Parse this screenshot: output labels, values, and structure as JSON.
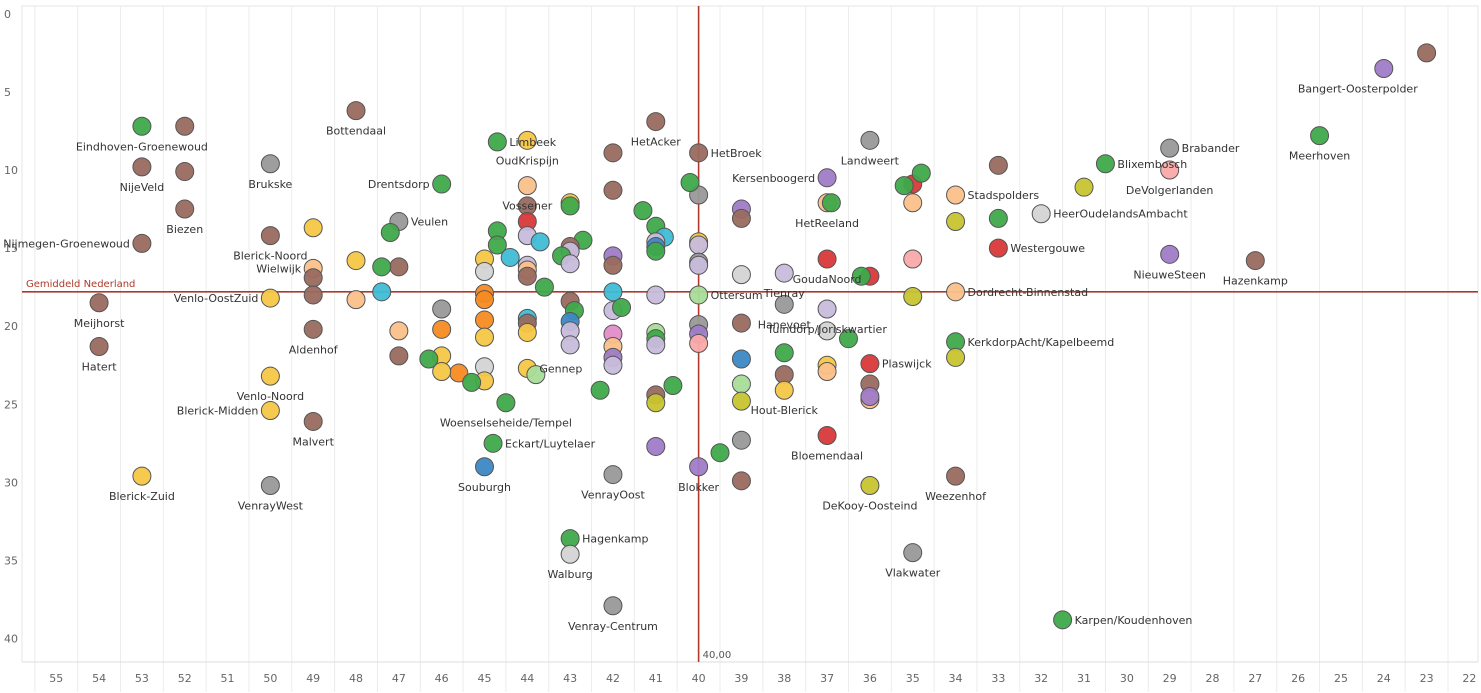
{
  "chart_data": {
    "type": "scatter",
    "x_axis": {
      "reversed": true,
      "range": [
        55.8,
        21.8
      ],
      "ticks": [
        55,
        54,
        53,
        52,
        51,
        50,
        49,
        48,
        47,
        46,
        45,
        44,
        43,
        42,
        41,
        40,
        39,
        38,
        37,
        36,
        35,
        34,
        33,
        32,
        31,
        30,
        29,
        28,
        27,
        26,
        25,
        24,
        23,
        22
      ]
    },
    "y_axis": {
      "reversed": true,
      "range": [
        -0.5,
        41.5
      ],
      "ticks": [
        0,
        5,
        10,
        15,
        20,
        25,
        30,
        35,
        40
      ]
    },
    "grid": "vertical",
    "reference_lines": {
      "horizontal": {
        "y": 17.8,
        "label": "Gemiddeld Nederland"
      },
      "vertical": {
        "x": 40,
        "label": "40,00"
      }
    },
    "colors": {
      "green": "#3fa94a",
      "brown": "#9a6a5f",
      "gray": "#999999",
      "lightgray": "#d4d4d4",
      "yellow": "#f5c744",
      "olive": "#c8c430",
      "purple": "#a07cc8",
      "lavender": "#c8bcdc",
      "peach": "#fbc08a",
      "pink": "#f9a9a9",
      "red": "#d8383a",
      "blue": "#3c88c4",
      "cyan": "#3fbcd6",
      "orange": "#f58b22",
      "magenta": "#e38cc8",
      "lightgreen": "#a8dd98"
    },
    "points": [
      {
        "x": 23,
        "y": 2.5,
        "c": "brown"
      },
      {
        "x": 24,
        "y": 3.5,
        "c": "purple"
      },
      {
        "x": 25.5,
        "y": 7.8,
        "c": "green",
        "label": "Meerhoven"
      },
      {
        "x": 29,
        "y": 8.6,
        "c": "gray",
        "label": "Brabander"
      },
      {
        "x": 29,
        "y": 10,
        "c": "pink",
        "label": "DeVolgerlanden"
      },
      {
        "x": 30.5,
        "y": 9.6,
        "c": "green",
        "label": "Blixembosch"
      },
      {
        "x": 31,
        "y": 11.1,
        "c": "olive"
      },
      {
        "x": 32,
        "y": 12.8,
        "c": "lightgray",
        "label": "HeerOudelandsAmbacht"
      },
      {
        "x": 29,
        "y": 15.4,
        "c": "purple",
        "label": "NieuweSteen"
      },
      {
        "x": 27,
        "y": 15.8,
        "c": "brown",
        "label": "Hazenkamp"
      },
      {
        "x": 31.5,
        "y": 38.8,
        "c": "green",
        "label": "Karpen/Koudenhoven"
      },
      {
        "x": 33,
        "y": 9.7,
        "c": "brown"
      },
      {
        "x": 33,
        "y": 13.1,
        "c": "green"
      },
      {
        "x": 33,
        "y": 15,
        "c": "red",
        "label": "Westergouwe"
      },
      {
        "x": 34,
        "y": 11.6,
        "c": "peach",
        "label": "Stadspolders"
      },
      {
        "x": 34,
        "y": 13.3,
        "c": "olive"
      },
      {
        "x": 34,
        "y": 17.8,
        "c": "peach",
        "label": "Dordrecht-Binnenstad"
      },
      {
        "x": 34,
        "y": 21,
        "c": "green",
        "label": "KerkdorpAcht/Kapelbeemd"
      },
      {
        "x": 34,
        "y": 22,
        "c": "olive"
      },
      {
        "x": 34,
        "y": 29.6,
        "c": "brown",
        "label": "Weezenhof"
      },
      {
        "x": 35,
        "y": 10.9,
        "c": "red"
      },
      {
        "x": 35,
        "y": 12.1,
        "c": "peach"
      },
      {
        "x": 35,
        "y": 15.7,
        "c": "pink"
      },
      {
        "x": 35,
        "y": 18.1,
        "c": "olive"
      },
      {
        "x": 35,
        "y": 34.5,
        "c": "gray",
        "label": "Vlakwater"
      },
      {
        "x": 34.8,
        "y": 10.2,
        "c": "green"
      },
      {
        "x": 35.2,
        "y": 11,
        "c": "green"
      },
      {
        "x": 36,
        "y": 8.1,
        "c": "gray",
        "label": "Landweert"
      },
      {
        "x": 36,
        "y": 16.8,
        "c": "red"
      },
      {
        "x": 36.2,
        "y": 16.8,
        "c": "green"
      },
      {
        "x": 36,
        "y": 22.4,
        "c": "red",
        "label": "Plaswijck"
      },
      {
        "x": 36,
        "y": 23.7,
        "c": "brown"
      },
      {
        "x": 36,
        "y": 24.7,
        "c": "peach"
      },
      {
        "x": 36,
        "y": 24.5,
        "c": "purple"
      },
      {
        "x": 36,
        "y": 30.2,
        "c": "olive",
        "label": "DeKooy-Oosteind"
      },
      {
        "x": 37,
        "y": 10.5,
        "c": "purple",
        "label": "Kersenboogerd"
      },
      {
        "x": 37,
        "y": 12.1,
        "c": "peach",
        "label": "HetReeland"
      },
      {
        "x": 36.9,
        "y": 12.1,
        "c": "green"
      },
      {
        "x": 37,
        "y": 15.7,
        "c": "red",
        "label": "GoudaNoord"
      },
      {
        "x": 37,
        "y": 18.9,
        "c": "lavender",
        "label": "Tuindorp/Joriskwartier"
      },
      {
        "x": 37,
        "y": 20.3,
        "c": "lightgray"
      },
      {
        "x": 37,
        "y": 22.5,
        "c": "yellow"
      },
      {
        "x": 37,
        "y": 22.9,
        "c": "peach"
      },
      {
        "x": 37,
        "y": 27,
        "c": "red",
        "label": "Bloemendaal"
      },
      {
        "x": 36.5,
        "y": 20.8,
        "c": "green"
      },
      {
        "x": 38,
        "y": 16.6,
        "c": "lavender",
        "label": "Tienray"
      },
      {
        "x": 38,
        "y": 18.6,
        "c": "gray",
        "label": "Hanevoet"
      },
      {
        "x": 38,
        "y": 21.7,
        "c": "green"
      },
      {
        "x": 38,
        "y": 23.1,
        "c": "brown"
      },
      {
        "x": 38,
        "y": 24.1,
        "c": "yellow",
        "label": "Hout-Blerick"
      },
      {
        "x": 39,
        "y": 12.5,
        "c": "purple"
      },
      {
        "x": 39,
        "y": 13.1,
        "c": "brown"
      },
      {
        "x": 39,
        "y": 16.7,
        "c": "lightgray"
      },
      {
        "x": 39,
        "y": 19.8,
        "c": "brown"
      },
      {
        "x": 39,
        "y": 22.1,
        "c": "blue"
      },
      {
        "x": 39,
        "y": 23.7,
        "c": "lightgreen"
      },
      {
        "x": 39,
        "y": 24.8,
        "c": "olive"
      },
      {
        "x": 39,
        "y": 27.3,
        "c": "gray"
      },
      {
        "x": 39,
        "y": 29.9,
        "c": "brown"
      },
      {
        "x": 40,
        "y": 8.9,
        "c": "brown",
        "label": "HetBroek"
      },
      {
        "x": 40,
        "y": 11.6,
        "c": "gray"
      },
      {
        "x": 40.2,
        "y": 10.8,
        "c": "green"
      },
      {
        "x": 40,
        "y": 14.6,
        "c": "yellow"
      },
      {
        "x": 40,
        "y": 14.8,
        "c": "lavender"
      },
      {
        "x": 40,
        "y": 15.9,
        "c": "gray"
      },
      {
        "x": 40,
        "y": 16.1,
        "c": "lavender"
      },
      {
        "x": 40,
        "y": 18,
        "c": "lightgreen",
        "label": "Ottersum"
      },
      {
        "x": 40,
        "y": 19.9,
        "c": "gray"
      },
      {
        "x": 40,
        "y": 20.5,
        "c": "purple"
      },
      {
        "x": 40,
        "y": 21.1,
        "c": "pink"
      },
      {
        "x": 40,
        "y": 29,
        "c": "purple",
        "label": "Blokker"
      },
      {
        "x": 39.5,
        "y": 28.1,
        "c": "green"
      },
      {
        "x": 41,
        "y": 6.9,
        "c": "brown",
        "label": "HetAcker"
      },
      {
        "x": 41.3,
        "y": 12.6,
        "c": "green"
      },
      {
        "x": 41,
        "y": 13.6,
        "c": "green"
      },
      {
        "x": 40.8,
        "y": 14.3,
        "c": "cyan"
      },
      {
        "x": 41,
        "y": 14.6,
        "c": "lavender"
      },
      {
        "x": 41,
        "y": 14.9,
        "c": "blue"
      },
      {
        "x": 41,
        "y": 15.2,
        "c": "green"
      },
      {
        "x": 41,
        "y": 18,
        "c": "lavender"
      },
      {
        "x": 41,
        "y": 20.4,
        "c": "lightgreen"
      },
      {
        "x": 41,
        "y": 20.8,
        "c": "green"
      },
      {
        "x": 41,
        "y": 21.2,
        "c": "lavender"
      },
      {
        "x": 41,
        "y": 24.4,
        "c": "brown"
      },
      {
        "x": 41,
        "y": 24.9,
        "c": "olive"
      },
      {
        "x": 40.6,
        "y": 23.8,
        "c": "green"
      },
      {
        "x": 41,
        "y": 27.7,
        "c": "purple"
      },
      {
        "x": 42,
        "y": 8.9,
        "c": "brown"
      },
      {
        "x": 42,
        "y": 11.3,
        "c": "brown"
      },
      {
        "x": 42,
        "y": 15.5,
        "c": "purple"
      },
      {
        "x": 42,
        "y": 16.1,
        "c": "brown"
      },
      {
        "x": 42,
        "y": 17.8,
        "c": "cyan"
      },
      {
        "x": 42,
        "y": 19,
        "c": "lavender"
      },
      {
        "x": 41.8,
        "y": 18.8,
        "c": "green"
      },
      {
        "x": 42,
        "y": 20.5,
        "c": "magenta"
      },
      {
        "x": 42,
        "y": 21.3,
        "c": "peach"
      },
      {
        "x": 42,
        "y": 22,
        "c": "purple"
      },
      {
        "x": 42,
        "y": 22.5,
        "c": "lavender"
      },
      {
        "x": 42.3,
        "y": 24.1,
        "c": "green"
      },
      {
        "x": 42,
        "y": 29.5,
        "c": "gray",
        "label": "VenrayOost"
      },
      {
        "x": 42,
        "y": 37.9,
        "c": "gray",
        "label": "Venray-Centrum"
      },
      {
        "x": 43,
        "y": 12.1,
        "c": "yellow"
      },
      {
        "x": 43,
        "y": 12.3,
        "c": "green"
      },
      {
        "x": 42.7,
        "y": 14.5,
        "c": "green"
      },
      {
        "x": 43,
        "y": 14.9,
        "c": "brown"
      },
      {
        "x": 43,
        "y": 15.2,
        "c": "lavender"
      },
      {
        "x": 43.2,
        "y": 15.5,
        "c": "green"
      },
      {
        "x": 43,
        "y": 16,
        "c": "lavender"
      },
      {
        "x": 43,
        "y": 18.4,
        "c": "brown"
      },
      {
        "x": 42.9,
        "y": 19,
        "c": "green"
      },
      {
        "x": 43,
        "y": 19.7,
        "c": "blue"
      },
      {
        "x": 43,
        "y": 20.3,
        "c": "lavender"
      },
      {
        "x": 43,
        "y": 21.2,
        "c": "lavender"
      },
      {
        "x": 43,
        "y": 33.6,
        "c": "green",
        "label": "Hagenkamp"
      },
      {
        "x": 43,
        "y": 34.6,
        "c": "lightgray",
        "label": "Walburg"
      },
      {
        "x": 44,
        "y": 8.1,
        "c": "yellow",
        "label": "OudKrispijn"
      },
      {
        "x": 44,
        "y": 11,
        "c": "peach",
        "label": "Vossener"
      },
      {
        "x": 44,
        "y": 12.3,
        "c": "brown"
      },
      {
        "x": 44,
        "y": 13.3,
        "c": "red"
      },
      {
        "x": 44,
        "y": 14.2,
        "c": "lavender"
      },
      {
        "x": 43.7,
        "y": 14.6,
        "c": "cyan"
      },
      {
        "x": 44,
        "y": 16.1,
        "c": "lavender"
      },
      {
        "x": 44,
        "y": 16.4,
        "c": "peach"
      },
      {
        "x": 44,
        "y": 16.8,
        "c": "brown"
      },
      {
        "x": 43.6,
        "y": 17.5,
        "c": "green"
      },
      {
        "x": 44,
        "y": 19.5,
        "c": "cyan"
      },
      {
        "x": 44,
        "y": 19.8,
        "c": "brown"
      },
      {
        "x": 44,
        "y": 20.4,
        "c": "yellow"
      },
      {
        "x": 44,
        "y": 22.7,
        "c": "yellow",
        "label": "Gennep"
      },
      {
        "x": 43.8,
        "y": 23.1,
        "c": "lightgreen"
      },
      {
        "x": 45,
        "y": 15.7,
        "c": "yellow"
      },
      {
        "x": 45,
        "y": 16.5,
        "c": "lightgray"
      },
      {
        "x": 45,
        "y": 17.9,
        "c": "orange"
      },
      {
        "x": 45,
        "y": 18.3,
        "c": "orange"
      },
      {
        "x": 45,
        "y": 19.6,
        "c": "orange"
      },
      {
        "x": 45,
        "y": 20.7,
        "c": "yellow"
      },
      {
        "x": 45,
        "y": 22.6,
        "c": "lightgray"
      },
      {
        "x": 45,
        "y": 23.5,
        "c": "yellow"
      },
      {
        "x": 44.7,
        "y": 8.2,
        "c": "green",
        "label": "Limbeek"
      },
      {
        "x": 44.7,
        "y": 13.9,
        "c": "green"
      },
      {
        "x": 44.7,
        "y": 14.8,
        "c": "green"
      },
      {
        "x": 44.4,
        "y": 15.6,
        "c": "cyan"
      },
      {
        "x": 44.5,
        "y": 24.9,
        "c": "green",
        "label": "Woenselseheide/Tempel"
      },
      {
        "x": 44.8,
        "y": 27.5,
        "c": "green",
        "label": "Eckart/Luytelaer"
      },
      {
        "x": 45,
        "y": 29,
        "c": "blue",
        "label": "Souburgh"
      },
      {
        "x": 45.6,
        "y": 23,
        "c": "orange"
      },
      {
        "x": 45.3,
        "y": 23.6,
        "c": "green"
      },
      {
        "x": 46,
        "y": 10.9,
        "c": "green",
        "label": "Drentsdorp"
      },
      {
        "x": 46,
        "y": 18.9,
        "c": "gray"
      },
      {
        "x": 46,
        "y": 20.2,
        "c": "orange"
      },
      {
        "x": 46,
        "y": 21.9,
        "c": "yellow"
      },
      {
        "x": 46,
        "y": 22.9,
        "c": "yellow"
      },
      {
        "x": 46.3,
        "y": 22.1,
        "c": "green"
      },
      {
        "x": 47,
        "y": 13.3,
        "c": "gray",
        "label": "Veulen"
      },
      {
        "x": 47.2,
        "y": 14,
        "c": "green"
      },
      {
        "x": 47,
        "y": 16.2,
        "c": "brown"
      },
      {
        "x": 47.4,
        "y": 16.2,
        "c": "green"
      },
      {
        "x": 47.4,
        "y": 17.8,
        "c": "cyan"
      },
      {
        "x": 47,
        "y": 20.3,
        "c": "peach"
      },
      {
        "x": 47,
        "y": 21.9,
        "c": "brown"
      },
      {
        "x": 48,
        "y": 6.2,
        "c": "brown",
        "label": "Bottendaal"
      },
      {
        "x": 48,
        "y": 15.8,
        "c": "yellow"
      },
      {
        "x": 48,
        "y": 18.3,
        "c": "peach"
      },
      {
        "x": 49,
        "y": 13.7,
        "c": "yellow"
      },
      {
        "x": 49,
        "y": 16.3,
        "c": "peach",
        "label": "Wielwijk"
      },
      {
        "x": 49,
        "y": 16.9,
        "c": "brown"
      },
      {
        "x": 49,
        "y": 18,
        "c": "brown"
      },
      {
        "x": 49,
        "y": 20.2,
        "c": "brown",
        "label": "Aldenhof"
      },
      {
        "x": 49,
        "y": 26.1,
        "c": "brown",
        "label": "Malvert"
      },
      {
        "x": 50,
        "y": 9.6,
        "c": "gray",
        "label": "Brukske"
      },
      {
        "x": 50,
        "y": 14.2,
        "c": "brown",
        "label": "Blerick-Noord"
      },
      {
        "x": 50,
        "y": 18.2,
        "c": "yellow",
        "label": "Venlo-OostZuid"
      },
      {
        "x": 50,
        "y": 23.2,
        "c": "yellow",
        "label": "Venlo-Noord"
      },
      {
        "x": 50,
        "y": 25.4,
        "c": "yellow",
        "label": "Blerick-Midden"
      },
      {
        "x": 50,
        "y": 30.2,
        "c": "gray",
        "label": "VenrayWest"
      },
      {
        "x": 52,
        "y": 7.2,
        "c": "brown"
      },
      {
        "x": 52,
        "y": 10.1,
        "c": "brown"
      },
      {
        "x": 52,
        "y": 12.5,
        "c": "brown",
        "label": "Biezen"
      },
      {
        "x": 53,
        "y": 7.2,
        "c": "green",
        "label": "Eindhoven-Groenewoud"
      },
      {
        "x": 53,
        "y": 9.8,
        "c": "brown",
        "label": "NijeVeld"
      },
      {
        "x": 53,
        "y": 14.7,
        "c": "brown",
        "label": "Nijmegen-Groenewoud"
      },
      {
        "x": 53,
        "y": 29.6,
        "c": "yellow",
        "label": "Blerick-Zuid"
      },
      {
        "x": 54,
        "y": 18.5,
        "c": "brown",
        "label": "Meijhorst"
      },
      {
        "x": 54,
        "y": 21.3,
        "c": "brown",
        "label": "Hatert"
      }
    ],
    "extra_labels": [
      {
        "x": 24,
        "y": 3.5,
        "label": "Bangert-Oosterpolder"
      }
    ]
  }
}
